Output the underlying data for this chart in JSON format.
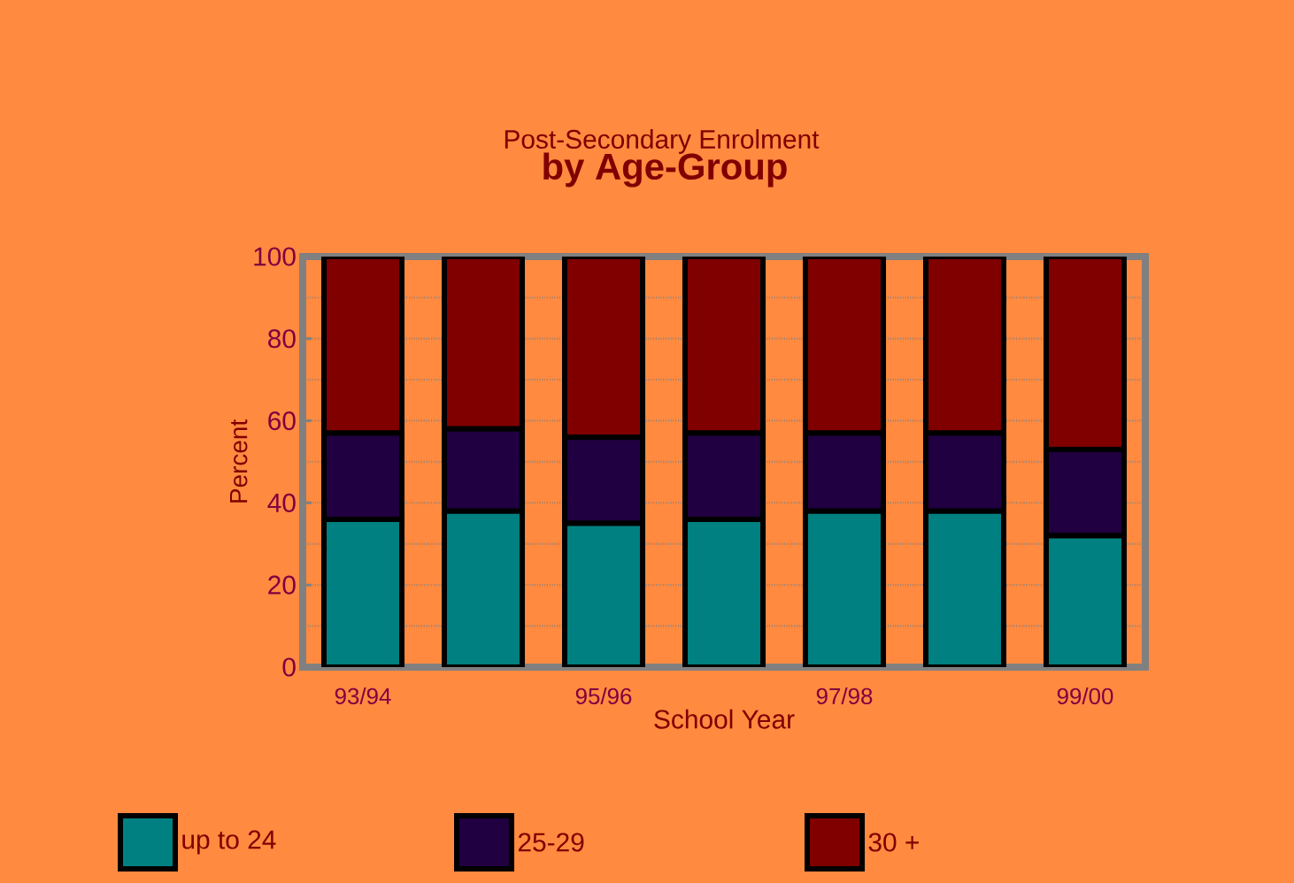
{
  "chart_data": {
    "type": "bar",
    "stacked": true,
    "title": "Post-Secondary Enrolment",
    "subtitle": "**by Age-Group**",
    "xlabel": "School Year",
    "ylabel": "Percent",
    "categories": [
      "93/94",
      null,
      "95/96",
      null,
      "97/98",
      null,
      "99/00"
    ],
    "series": [
      {
        "name": "up to 24",
        "color": "#008080",
        "values": [
          36,
          38,
          35,
          36,
          38,
          38,
          32
        ]
      },
      {
        "name": "25-29",
        "color": "#200040",
        "values": [
          21,
          20,
          21,
          21,
          19,
          19,
          21
        ]
      },
      {
        "name": "30 +",
        "color": "#800000",
        "values": [
          43,
          42,
          44,
          43,
          43,
          43,
          47
        ]
      }
    ],
    "ylim": [
      0,
      100
    ],
    "yticks": [
      0,
      20,
      40,
      60,
      80,
      100
    ],
    "grid": "y",
    "legend": "bottom"
  }
}
